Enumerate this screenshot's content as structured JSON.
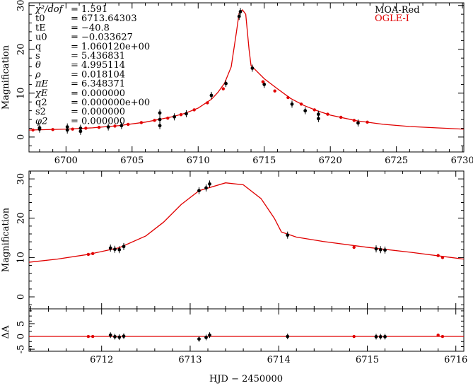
{
  "chart_data": [
    {
      "type": "line",
      "panel": "overview",
      "xlabel": "",
      "ylabel": "Magnification",
      "xlim": [
        6697.2,
        6730.1
      ],
      "ylim": [
        -3.4,
        30.6
      ],
      "xticks": [
        6700,
        6705,
        6710,
        6715,
        6720,
        6725,
        6730
      ],
      "yticks": [
        0,
        10,
        20,
        30
      ],
      "params": [
        {
          "name": "χ²/dof",
          "value": "= 1.591"
        },
        {
          "name": "t0",
          "value": "= 6713.64303"
        },
        {
          "name": "tE",
          "value": "= −40.8"
        },
        {
          "name": "u0",
          "value": "= −0.033627"
        },
        {
          "name": "q",
          "value": "= 1.060120e+00"
        },
        {
          "name": "s",
          "value": "= 5.436831"
        },
        {
          "name": "θ",
          "value": "= 4.995114"
        },
        {
          "name": "ρ",
          "value": "= 0.018104"
        },
        {
          "name": "πE",
          "value": "= 6.348371"
        },
        {
          "name": "χE",
          "value": "= 0.000000"
        },
        {
          "name": "q2",
          "value": "= 0.000000e+00"
        },
        {
          "name": "s2",
          "value": "= 0.000000"
        },
        {
          "name": "φ2",
          "value": "= 0.000000"
        }
      ],
      "legend": [
        {
          "label": "MOA-Red",
          "color": "#000000"
        },
        {
          "label": "OGLE-I",
          "color": "#e00000"
        }
      ],
      "legend_position": "top-right",
      "model": [
        [
          6697.2,
          1.6
        ],
        [
          6700,
          1.8
        ],
        [
          6702,
          2.1
        ],
        [
          6704,
          2.6
        ],
        [
          6706,
          3.4
        ],
        [
          6707,
          4.0
        ],
        [
          6708,
          4.6
        ],
        [
          6709,
          5.4
        ],
        [
          6710,
          6.6
        ],
        [
          6711,
          8.6
        ],
        [
          6711.5,
          10.2
        ],
        [
          6712,
          12.3
        ],
        [
          6712.5,
          16
        ],
        [
          6712.9,
          24
        ],
        [
          6713.1,
          28.3
        ],
        [
          6713.35,
          29
        ],
        [
          6713.6,
          28
        ],
        [
          6713.85,
          20
        ],
        [
          6714,
          16.3
        ],
        [
          6714.3,
          15.4
        ],
        [
          6715,
          13.3
        ],
        [
          6716,
          11
        ],
        [
          6717,
          8.8
        ],
        [
          6718,
          7.2
        ],
        [
          6719,
          6
        ],
        [
          6720,
          5
        ],
        [
          6722,
          3.7
        ],
        [
          6724,
          2.9
        ],
        [
          6726,
          2.4
        ],
        [
          6728,
          2.1
        ],
        [
          6730.1,
          1.8
        ]
      ],
      "moa": [
        [
          6698,
          1.8
        ],
        [
          6698,
          2.1
        ],
        [
          6700.1,
          2.3
        ],
        [
          6700.1,
          1.6
        ],
        [
          6701.1,
          1.3
        ],
        [
          6701.1,
          2.0
        ],
        [
          6703.2,
          2.3
        ],
        [
          6704.2,
          2.6
        ],
        [
          6707.1,
          4.0
        ],
        [
          6707.1,
          2.6
        ],
        [
          6707.1,
          5.5
        ],
        [
          6708.2,
          4.6
        ],
        [
          6709.1,
          5.3
        ],
        [
          6711,
          9.5
        ],
        [
          6712.1,
          12.2
        ],
        [
          6713.1,
          27.5
        ],
        [
          6713.2,
          28.6
        ],
        [
          6714.1,
          15.7
        ],
        [
          6715,
          12
        ],
        [
          6717.1,
          7.5
        ],
        [
          6718.1,
          6
        ],
        [
          6719.1,
          5.2
        ],
        [
          6719.1,
          4.2
        ],
        [
          6722.1,
          3.2
        ]
      ],
      "ogle": [
        [
          6697.5,
          1.6
        ],
        [
          6699,
          1.7
        ],
        [
          6700.5,
          1.8
        ],
        [
          6701.5,
          2.0
        ],
        [
          6702.5,
          2.2
        ],
        [
          6703.7,
          2.5
        ],
        [
          6704.7,
          2.9
        ],
        [
          6705.7,
          3.3
        ],
        [
          6706.7,
          3.8
        ],
        [
          6707.7,
          4.3
        ],
        [
          6708.7,
          5.1
        ],
        [
          6709.7,
          6.2
        ],
        [
          6710.7,
          7.8
        ],
        [
          6711.9,
          11
        ],
        [
          6714.9,
          12.6
        ],
        [
          6715.8,
          10.5
        ],
        [
          6716.8,
          9
        ],
        [
          6717.8,
          7.5
        ],
        [
          6718.8,
          6.2
        ],
        [
          6719.8,
          5.2
        ],
        [
          6720.8,
          4.5
        ],
        [
          6721.8,
          3.8
        ],
        [
          6722.8,
          3.4
        ]
      ]
    },
    {
      "type": "line",
      "panel": "zoom",
      "xlabel": "HJD − 2450000",
      "ylabel": "Magnification",
      "xlim": [
        6711.18,
        6716.09
      ],
      "ylim": [
        -3.05,
        32
      ],
      "xticks": [
        6712,
        6713,
        6714,
        6715,
        6716
      ],
      "yticks": [
        0,
        10,
        20,
        30
      ],
      "model": [
        [
          6711.18,
          8.8
        ],
        [
          6711.5,
          9.6
        ],
        [
          6711.85,
          10.8
        ],
        [
          6712.2,
          12.5
        ],
        [
          6712.5,
          15.5
        ],
        [
          6712.7,
          19
        ],
        [
          6712.9,
          23.5
        ],
        [
          6713.1,
          27
        ],
        [
          6713.4,
          29
        ],
        [
          6713.6,
          28.5
        ],
        [
          6713.8,
          25
        ],
        [
          6713.95,
          20
        ],
        [
          6714.03,
          16.5
        ],
        [
          6714.2,
          15.2
        ],
        [
          6714.5,
          14.1
        ],
        [
          6715,
          12.6
        ],
        [
          6715.5,
          11.3
        ],
        [
          6716.09,
          9.6
        ]
      ],
      "moa": [
        [
          6712.1,
          12.4
        ],
        [
          6712.15,
          12.1
        ],
        [
          6712.2,
          12.0
        ],
        [
          6712.25,
          12.8
        ],
        [
          6713.1,
          27
        ],
        [
          6713.18,
          27.7
        ],
        [
          6713.22,
          28.7
        ],
        [
          6714.1,
          15.7
        ],
        [
          6715.1,
          12.2
        ],
        [
          6715.15,
          12.0
        ],
        [
          6715.2,
          11.9
        ]
      ],
      "ogle": [
        [
          6711.85,
          10.8
        ],
        [
          6711.9,
          11
        ],
        [
          6714.85,
          12.6
        ],
        [
          6715.8,
          10.5
        ],
        [
          6715.85,
          10
        ]
      ]
    },
    {
      "type": "scatter",
      "panel": "residual",
      "ylabel": "ΔA",
      "xlim": [
        6711.18,
        6716.09
      ],
      "ylim": [
        -5.8,
        10.8
      ],
      "yticks": [
        -5,
        0,
        5
      ],
      "moa": [
        [
          6712.1,
          0.5
        ],
        [
          6712.15,
          -0.1
        ],
        [
          6712.2,
          -0.3
        ],
        [
          6712.25,
          0.1
        ],
        [
          6713.1,
          -1
        ],
        [
          6713.18,
          -0.4
        ],
        [
          6713.22,
          0.5
        ],
        [
          6714.1,
          0
        ],
        [
          6715.1,
          -0.1
        ],
        [
          6715.15,
          -0.1
        ],
        [
          6715.2,
          -0.1
        ]
      ],
      "ogle": [
        [
          6711.85,
          0
        ],
        [
          6711.9,
          0
        ],
        [
          6714.85,
          0
        ],
        [
          6715.8,
          0.5
        ],
        [
          6715.85,
          0
        ]
      ]
    }
  ]
}
